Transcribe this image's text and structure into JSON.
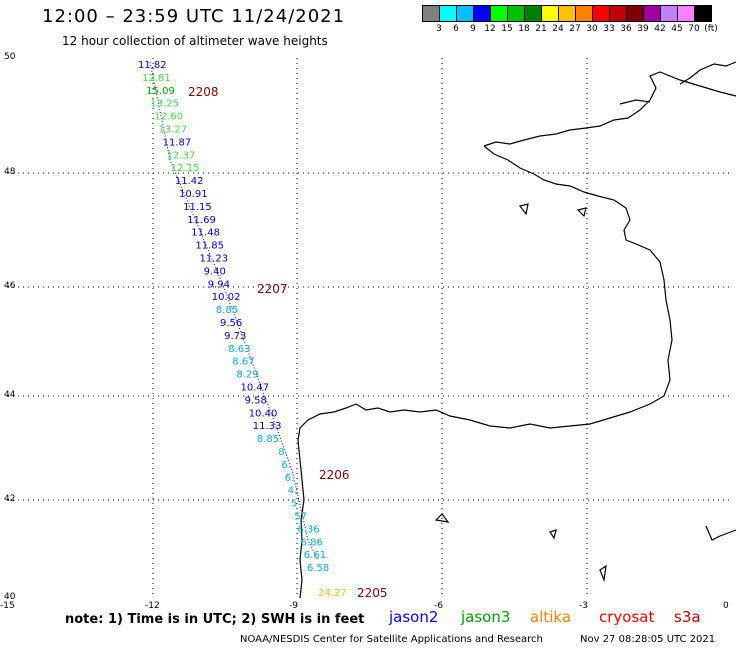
{
  "header": {
    "title": "12:00 – 23:59 UTC 11/24/2021",
    "subtitle": "12 hour collection of altimeter wave heights"
  },
  "legend": {
    "colors": [
      "#808080",
      "#00ffff",
      "#00c0ff",
      "#0000ff",
      "#00ff00",
      "#00c000",
      "#008000",
      "#ffff00",
      "#ffc000",
      "#ff8000",
      "#ff0000",
      "#c00000",
      "#800000",
      "#a000a0",
      "#c080ff",
      "#ff80ff",
      "#000000"
    ],
    "labels": [
      "3",
      "6",
      "9",
      "12",
      "15",
      "18",
      "21",
      "24",
      "27",
      "30",
      "33",
      "36",
      "39",
      "42",
      "45",
      "70",
      "(ft)"
    ]
  },
  "axes": {
    "lat_labels": [
      "50",
      "48",
      "46",
      "44",
      "42",
      "40"
    ],
    "lon_labels": [
      "-15",
      "-12",
      "-9",
      "-6",
      "-3",
      "0"
    ]
  },
  "observations": [
    {
      "text": "11.82",
      "color": "#0000c0"
    },
    {
      "text": "12.81",
      "color": "#40e040"
    },
    {
      "text": "15.09",
      "color": "#00a000"
    },
    {
      "text": "13.25",
      "color": "#40e040"
    },
    {
      "text": "12.60",
      "color": "#40e040"
    },
    {
      "text": "13.27",
      "color": "#40e040"
    },
    {
      "text": "11.87",
      "color": "#0000c0"
    },
    {
      "text": "12.37",
      "color": "#40e040"
    },
    {
      "text": "12.15",
      "color": "#40e040"
    },
    {
      "text": "11.42",
      "color": "#0000c0"
    },
    {
      "text": "10.91",
      "color": "#0000c0"
    },
    {
      "text": "11.15",
      "color": "#0000c0"
    },
    {
      "text": "11.69",
      "color": "#0000c0"
    },
    {
      "text": "11.48",
      "color": "#0000c0"
    },
    {
      "text": "11.85",
      "color": "#0000c0"
    },
    {
      "text": "11.23",
      "color": "#0000c0"
    },
    {
      "text": "9.40",
      "color": "#0000c0"
    },
    {
      "text": "9.94",
      "color": "#0000c0"
    },
    {
      "text": "10.02",
      "color": "#0000c0"
    },
    {
      "text": "8.85",
      "color": "#00b0e0"
    },
    {
      "text": "9.56",
      "color": "#0000c0"
    },
    {
      "text": "9.73",
      "color": "#0000c0"
    },
    {
      "text": "8.63",
      "color": "#00b0e0"
    },
    {
      "text": "8.67",
      "color": "#00b0e0"
    },
    {
      "text": "8.29",
      "color": "#00b0e0"
    },
    {
      "text": "10.47",
      "color": "#0000c0"
    },
    {
      "text": "9.58",
      "color": "#0000c0"
    },
    {
      "text": "10.40",
      "color": "#0000c0"
    },
    {
      "text": "11.33",
      "color": "#0000c0"
    },
    {
      "text": "8.85",
      "color": "#00b0e0"
    },
    {
      "text": "8.",
      "color": "#00b0e0"
    },
    {
      "text": "6.",
      "color": "#00b0e0"
    },
    {
      "text": "6.",
      "color": "#00b0e0"
    },
    {
      "text": "4.",
      "color": "#00b0e0"
    },
    {
      "text": "5",
      "color": "#00b0e0"
    },
    {
      "text": "57",
      "color": "#00b0e0"
    },
    {
      "text": "6.36",
      "color": "#00b0e0"
    },
    {
      "text": "6.86",
      "color": "#00b0e0"
    },
    {
      "text": "6.61",
      "color": "#00b0e0"
    },
    {
      "text": "6.58",
      "color": "#00b0e0"
    },
    {
      "text": "24.27",
      "color": "#ffc000"
    }
  ],
  "passes": [
    "2208",
    "2207",
    "2206",
    "2205"
  ],
  "footer": {
    "note": "note:  1) Time is in UTC;  2) SWH is in feet",
    "satellites": [
      {
        "name": "jason2",
        "color": "#0000ff"
      },
      {
        "name": "jason3",
        "color": "#00a000"
      },
      {
        "name": "altika",
        "color": "#ff8000"
      },
      {
        "name": "cryosat",
        "color": "#ff0000"
      },
      {
        "name": "s3a",
        "color": "#c00000"
      }
    ],
    "credit": "NOAA/NESDIS Center for Satellite Applications and Research",
    "timestamp": "Nov 27 08:28:05 UTC 2021"
  }
}
